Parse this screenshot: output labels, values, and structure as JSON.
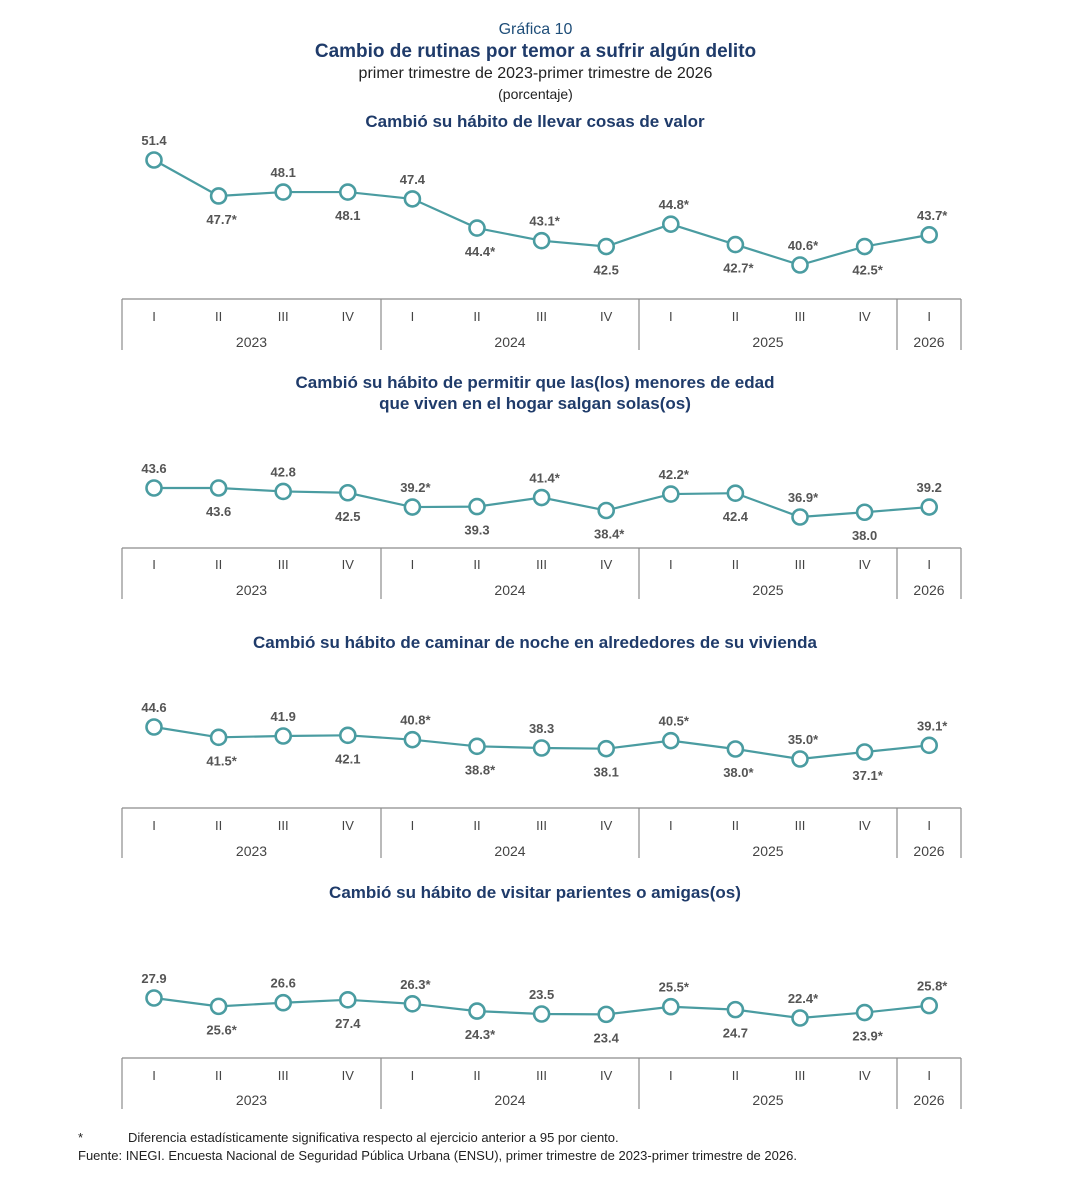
{
  "header": {
    "graph_number": "Gráfica 10",
    "title": "Cambio de rutinas por temor a sufrir algún delito",
    "subtitle": "primer trimestre de 2023-primer trimestre de 2026",
    "unit": "(porcentaje)"
  },
  "colors": {
    "line": "#4a9ca1",
    "axis": "#8c8c8c",
    "title": "#1f3b6a"
  },
  "quarters": [
    "I",
    "II",
    "III",
    "IV",
    "I",
    "II",
    "III",
    "IV",
    "I",
    "II",
    "III",
    "IV",
    "I"
  ],
  "years": [
    "2023",
    "2024",
    "2025",
    "2026"
  ],
  "chart_data": [
    {
      "type": "line",
      "title": [
        "Cambió su hábito de llevar cosas de valor"
      ],
      "values": [
        51.4,
        47.7,
        48.1,
        48.1,
        47.4,
        44.4,
        43.1,
        42.5,
        44.8,
        42.7,
        40.6,
        42.5,
        43.7
      ],
      "labels": [
        "51.4",
        "47.7*",
        "48.1",
        "48.1",
        "47.4",
        "44.4*",
        "43.1*",
        "42.5",
        "44.8*",
        "42.7*",
        "40.6*",
        "42.5*",
        "43.7*"
      ],
      "label_positions": [
        "above",
        "below",
        "above",
        "below",
        "above",
        "below",
        "above",
        "below",
        "above",
        "below",
        "above",
        "below",
        "above"
      ]
    },
    {
      "type": "line",
      "title": [
        "Cambió su hábito de permitir que las(los) menores de edad",
        "que viven en el hogar salgan solas(os)"
      ],
      "values": [
        43.6,
        43.6,
        42.8,
        42.5,
        39.2,
        39.3,
        41.4,
        38.4,
        42.2,
        42.4,
        36.9,
        38.0,
        39.2
      ],
      "labels": [
        "43.6",
        "43.6",
        "42.8",
        "42.5",
        "39.2*",
        "39.3",
        "41.4*",
        "38.4*",
        "42.2*",
        "42.4",
        "36.9*",
        "38.0",
        "39.2"
      ],
      "label_positions": [
        "above",
        "below",
        "above",
        "below",
        "above",
        "below",
        "above",
        "below",
        "above",
        "below",
        "above",
        "below",
        "above"
      ]
    },
    {
      "type": "line",
      "title": [
        "Cambió su hábito de caminar de noche en alrededores de su vivienda"
      ],
      "values": [
        44.6,
        41.5,
        41.9,
        42.1,
        40.8,
        38.8,
        38.3,
        38.1,
        40.5,
        38.0,
        35.0,
        37.1,
        39.1
      ],
      "labels": [
        "44.6",
        "41.5*",
        "41.9",
        "42.1",
        "40.8*",
        "38.8*",
        "38.3",
        "38.1",
        "40.5*",
        "38.0*",
        "35.0*",
        "37.1*",
        "39.1*"
      ],
      "label_positions": [
        "above",
        "below",
        "above",
        "below",
        "above",
        "below",
        "above",
        "below",
        "above",
        "below",
        "above",
        "below",
        "above"
      ]
    },
    {
      "type": "line",
      "title": [
        "Cambió su hábito de visitar parientes o amigas(os)"
      ],
      "values": [
        27.9,
        25.6,
        26.6,
        27.4,
        26.3,
        24.3,
        23.5,
        23.4,
        25.5,
        24.7,
        22.4,
        23.9,
        25.8
      ],
      "labels": [
        "27.9",
        "25.6*",
        "26.6",
        "27.4",
        "26.3*",
        "24.3*",
        "23.5",
        "23.4",
        "25.5*",
        "24.7",
        "22.4*",
        "23.9*",
        "25.8*"
      ],
      "label_positions": [
        "above",
        "below",
        "above",
        "below",
        "above",
        "below",
        "above",
        "below",
        "above",
        "below",
        "above",
        "below",
        "above"
      ]
    }
  ],
  "footnotes": {
    "star_symbol": "*",
    "star_text": "Diferencia estadísticamente significativa respecto al ejercicio anterior a 95 por ciento.",
    "source": "Fuente: INEGI. Encuesta Nacional de Seguridad Pública Urbana (ENSU), primer trimestre de 2023-primer trimestre de 2026."
  }
}
